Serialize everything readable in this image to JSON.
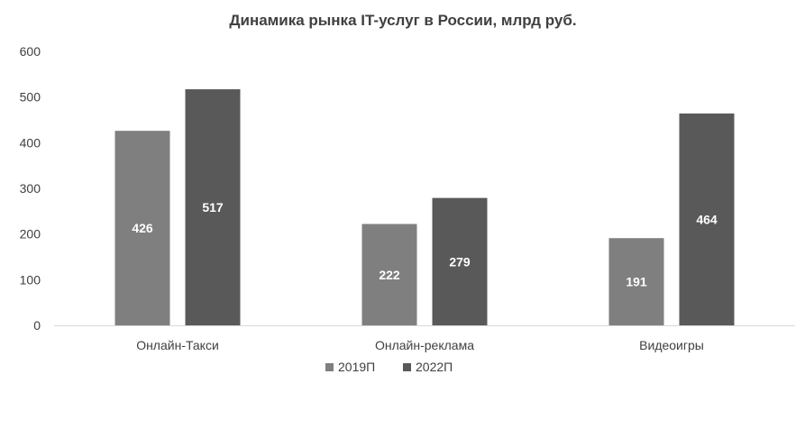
{
  "chart_data": {
    "type": "bar",
    "title": "Динамика рынка IT-услуг в России, млрд руб.",
    "categories": [
      "Онлайн-Такси",
      "Онлайн-реклама",
      "Видеоигры"
    ],
    "series": [
      {
        "name": "2019П",
        "values": [
          426,
          222,
          191
        ],
        "color": "#7f7f7f"
      },
      {
        "name": "2022П",
        "values": [
          517,
          279,
          464
        ],
        "color": "#595959"
      }
    ],
    "ylim": [
      0,
      600
    ],
    "yticks": [
      0,
      100,
      200,
      300,
      400,
      500,
      600
    ],
    "grid": false,
    "legend": "bottom",
    "data_labels": true
  }
}
